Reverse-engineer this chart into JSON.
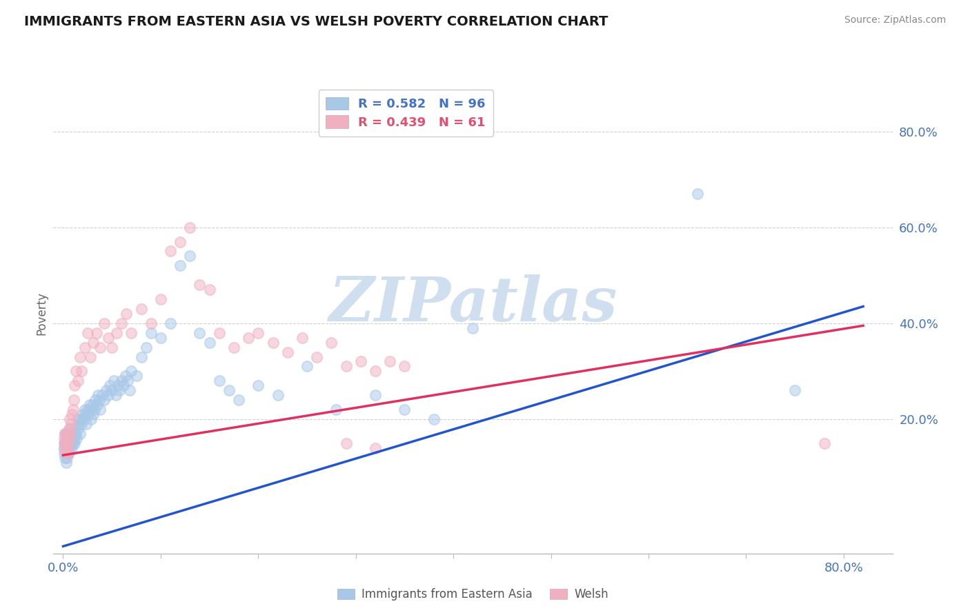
{
  "title": "IMMIGRANTS FROM EASTERN ASIA VS WELSH POVERTY CORRELATION CHART",
  "source": "Source: ZipAtlas.com",
  "ylabel": "Poverty",
  "y_tick_labels": [
    "20.0%",
    "40.0%",
    "60.0%",
    "80.0%"
  ],
  "y_tick_values": [
    0.2,
    0.4,
    0.6,
    0.8
  ],
  "x_tick_positions": [
    0.0,
    0.1,
    0.2,
    0.3,
    0.4,
    0.5,
    0.6,
    0.7,
    0.8
  ],
  "x_tick_labels": [
    "0.0%",
    "",
    "",
    "",
    "",
    "",
    "",
    "",
    "80.0%"
  ],
  "xlim": [
    -0.01,
    0.85
  ],
  "ylim": [
    -0.08,
    0.92
  ],
  "legend1_label": "Immigrants from Eastern Asia",
  "legend2_label": "Welsh",
  "R1": 0.582,
  "N1": 96,
  "R2": 0.439,
  "N2": 61,
  "color_blue": "#a8c8e8",
  "color_pink": "#f0b0c0",
  "color_blue_text": "#4472c4",
  "color_pink_text": "#e05070",
  "color_blue_line": "#2255cc",
  "color_pink_line": "#e03060",
  "background_color": "#ffffff",
  "watermark_text": "ZIPatlas",
  "watermark_color": "#d0dff0",
  "grid_color": "#d0d0d0",
  "grid_style": "--",
  "blue_line_x0": 0.0,
  "blue_line_x1": 0.82,
  "blue_line_y0": -0.065,
  "blue_line_y1": 0.435,
  "pink_line_x0": 0.0,
  "pink_line_x1": 0.82,
  "pink_line_y0": 0.125,
  "pink_line_y1": 0.395,
  "blue_points_x": [
    0.001,
    0.001,
    0.001,
    0.002,
    0.002,
    0.002,
    0.003,
    0.003,
    0.003,
    0.003,
    0.004,
    0.004,
    0.004,
    0.005,
    0.005,
    0.005,
    0.006,
    0.006,
    0.006,
    0.007,
    0.007,
    0.007,
    0.008,
    0.008,
    0.009,
    0.009,
    0.01,
    0.01,
    0.011,
    0.012,
    0.012,
    0.013,
    0.014,
    0.015,
    0.015,
    0.016,
    0.017,
    0.018,
    0.019,
    0.02,
    0.021,
    0.022,
    0.023,
    0.024,
    0.025,
    0.026,
    0.027,
    0.028,
    0.029,
    0.03,
    0.031,
    0.032,
    0.033,
    0.035,
    0.036,
    0.037,
    0.038,
    0.04,
    0.042,
    0.044,
    0.046,
    0.048,
    0.05,
    0.052,
    0.054,
    0.056,
    0.058,
    0.06,
    0.062,
    0.064,
    0.066,
    0.068,
    0.07,
    0.075,
    0.08,
    0.085,
    0.09,
    0.1,
    0.11,
    0.12,
    0.13,
    0.14,
    0.15,
    0.16,
    0.17,
    0.18,
    0.2,
    0.22,
    0.25,
    0.28,
    0.32,
    0.35,
    0.38,
    0.42,
    0.65,
    0.75
  ],
  "blue_points_y": [
    0.15,
    0.14,
    0.13,
    0.12,
    0.15,
    0.17,
    0.11,
    0.14,
    0.16,
    0.13,
    0.12,
    0.15,
    0.17,
    0.13,
    0.16,
    0.14,
    0.15,
    0.17,
    0.13,
    0.14,
    0.16,
    0.18,
    0.15,
    0.17,
    0.14,
    0.16,
    0.15,
    0.17,
    0.16,
    0.15,
    0.18,
    0.17,
    0.16,
    0.18,
    0.2,
    0.19,
    0.17,
    0.2,
    0.19,
    0.21,
    0.2,
    0.22,
    0.21,
    0.19,
    0.22,
    0.21,
    0.23,
    0.22,
    0.2,
    0.23,
    0.21,
    0.22,
    0.24,
    0.23,
    0.25,
    0.24,
    0.22,
    0.25,
    0.24,
    0.26,
    0.25,
    0.27,
    0.26,
    0.28,
    0.25,
    0.27,
    0.26,
    0.28,
    0.27,
    0.29,
    0.28,
    0.26,
    0.3,
    0.29,
    0.33,
    0.35,
    0.38,
    0.37,
    0.4,
    0.52,
    0.54,
    0.38,
    0.36,
    0.28,
    0.26,
    0.24,
    0.27,
    0.25,
    0.31,
    0.22,
    0.25,
    0.22,
    0.2,
    0.39,
    0.67,
    0.26
  ],
  "pink_points_x": [
    0.001,
    0.001,
    0.002,
    0.002,
    0.003,
    0.003,
    0.004,
    0.004,
    0.005,
    0.005,
    0.006,
    0.006,
    0.007,
    0.007,
    0.008,
    0.009,
    0.01,
    0.011,
    0.012,
    0.013,
    0.015,
    0.017,
    0.019,
    0.022,
    0.025,
    0.028,
    0.031,
    0.034,
    0.038,
    0.042,
    0.046,
    0.05,
    0.055,
    0.06,
    0.065,
    0.07,
    0.08,
    0.09,
    0.1,
    0.11,
    0.12,
    0.13,
    0.14,
    0.15,
    0.16,
    0.175,
    0.19,
    0.2,
    0.215,
    0.23,
    0.245,
    0.26,
    0.275,
    0.29,
    0.305,
    0.32,
    0.335,
    0.35,
    0.29,
    0.32,
    0.78
  ],
  "pink_points_y": [
    0.14,
    0.16,
    0.15,
    0.17,
    0.13,
    0.16,
    0.14,
    0.17,
    0.15,
    0.13,
    0.16,
    0.18,
    0.17,
    0.2,
    0.19,
    0.21,
    0.22,
    0.24,
    0.27,
    0.3,
    0.28,
    0.33,
    0.3,
    0.35,
    0.38,
    0.33,
    0.36,
    0.38,
    0.35,
    0.4,
    0.37,
    0.35,
    0.38,
    0.4,
    0.42,
    0.38,
    0.43,
    0.4,
    0.45,
    0.55,
    0.57,
    0.6,
    0.48,
    0.47,
    0.38,
    0.35,
    0.37,
    0.38,
    0.36,
    0.34,
    0.37,
    0.33,
    0.36,
    0.31,
    0.32,
    0.3,
    0.32,
    0.31,
    0.15,
    0.14,
    0.15
  ]
}
